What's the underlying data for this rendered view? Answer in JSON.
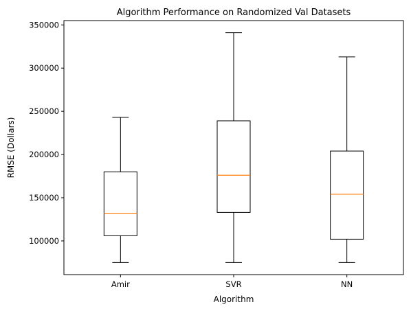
{
  "chart_data": {
    "type": "boxplot",
    "title": "Algorithm Performance on Randomized Val Datasets",
    "xlabel": "Algorithm",
    "ylabel": "RMSE (Dollars)",
    "ylim": [
      61000,
      355000
    ],
    "yticks": [
      100000,
      150000,
      200000,
      250000,
      300000,
      350000
    ],
    "grid": false,
    "categories": [
      "Amir",
      "SVR",
      "NN"
    ],
    "boxes": [
      {
        "category": "Amir",
        "whisker_low": 75000,
        "q1": 106000,
        "median": 132000,
        "q3": 180000,
        "whisker_high": 243000
      },
      {
        "category": "SVR",
        "whisker_low": 75000,
        "q1": 133000,
        "median": 176000,
        "q3": 239000,
        "whisker_high": 341000
      },
      {
        "category": "NN",
        "whisker_low": 75000,
        "q1": 102000,
        "median": 154000,
        "q3": 204000,
        "whisker_high": 313000
      }
    ],
    "colors": {
      "box": "#000000",
      "median": "#ff7f0e",
      "background": "#ffffff"
    }
  }
}
